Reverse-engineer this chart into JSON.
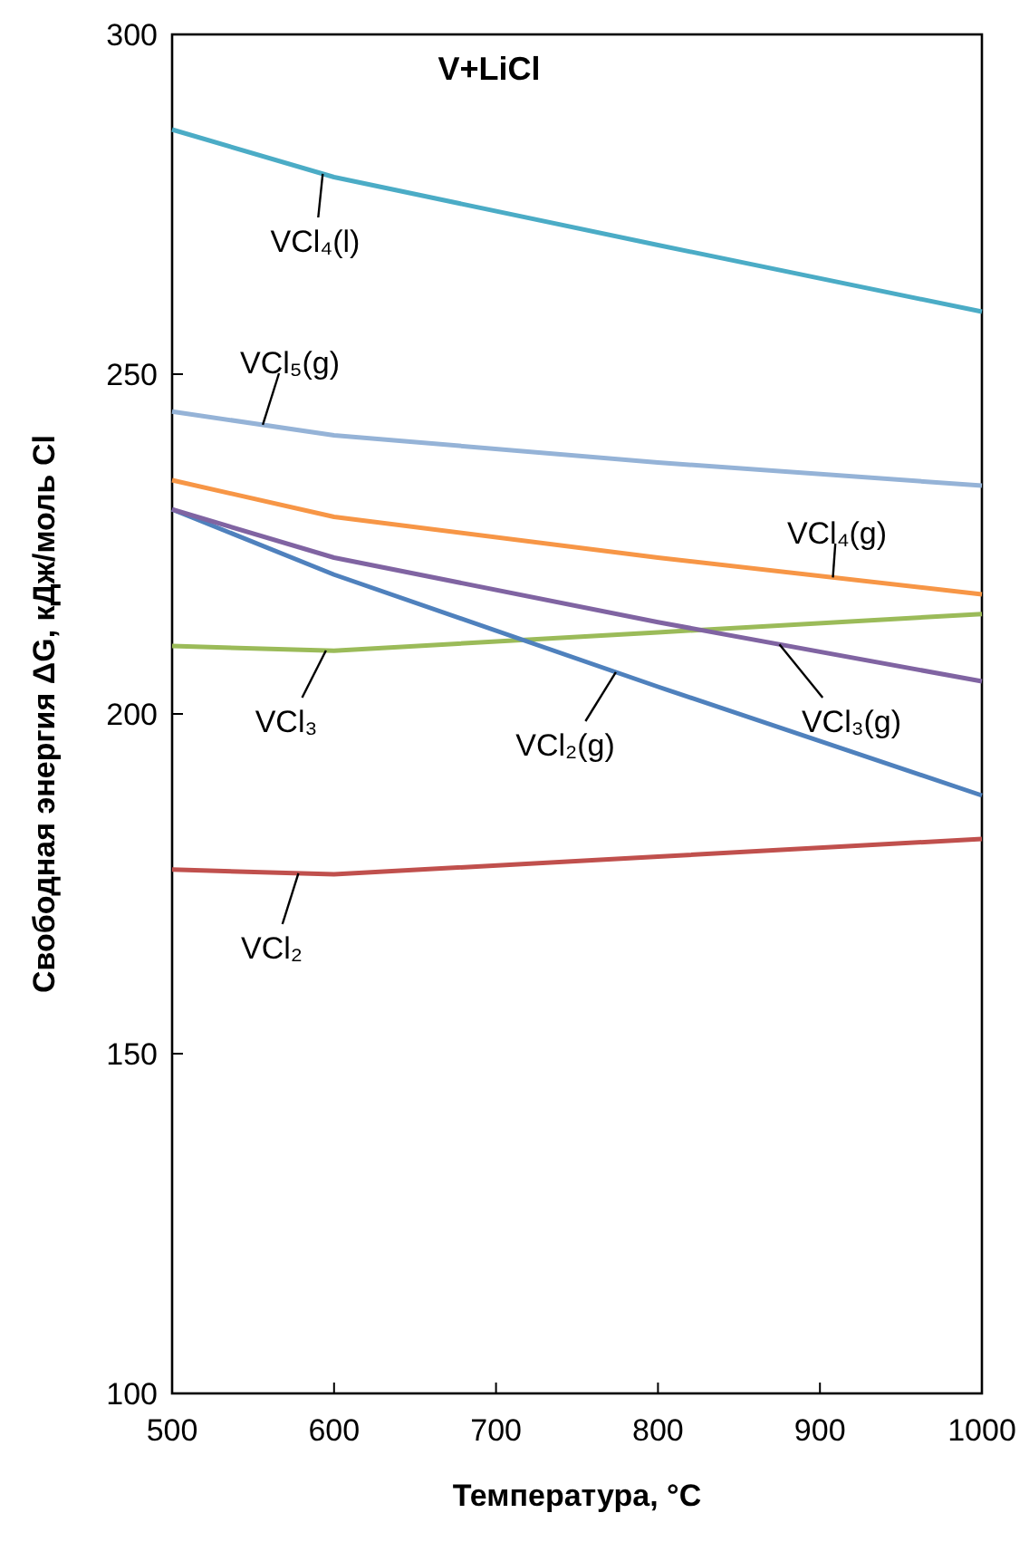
{
  "chart_data": {
    "type": "line",
    "title": "V+LiCl",
    "xlabel": "Температура, °C",
    "ylabel": "Свободная энергия ΔG, кДж/моль Cl",
    "x": [
      500,
      600,
      800,
      1000
    ],
    "series": [
      {
        "name": "VCl₄(l)",
        "color": "#4bacc6",
        "values": [
          286,
          279,
          269,
          259.2
        ]
      },
      {
        "name": "VCl₅(g)",
        "color": "#95b3d7",
        "values": [
          244.5,
          241,
          237,
          233.6
        ]
      },
      {
        "name": "VCl₄(g)",
        "color": "#f79646",
        "values": [
          234.4,
          229,
          223,
          217.6
        ]
      },
      {
        "name": "VCl₃",
        "color": "#9bbb59",
        "values": [
          210,
          209.3,
          212,
          214.7
        ]
      },
      {
        "name": "VCl₂(g)",
        "color": "#4f81bd",
        "values": [
          230.1,
          220.5,
          204,
          188
        ]
      },
      {
        "name": "VCl₃(g)",
        "color": "#8064a2",
        "values": [
          230.1,
          223,
          213.5,
          204.8
        ]
      },
      {
        "name": "VCl₂",
        "color": "#c0504d",
        "values": [
          177.1,
          176.4,
          179,
          181.6
        ]
      }
    ],
    "xlim": [
      500,
      1000
    ],
    "xticks": [
      500,
      600,
      700,
      800,
      900,
      1000
    ],
    "ylim": [
      100,
      300
    ],
    "yticks": [
      100,
      150,
      200,
      250,
      300
    ],
    "grid": false,
    "marker": "none",
    "line_style": "solid"
  }
}
